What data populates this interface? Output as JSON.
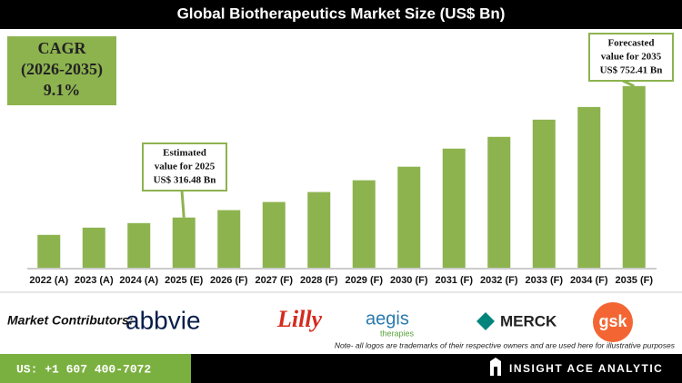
{
  "chart_data": {
    "type": "bar",
    "title": "Global Biotherapeutics Market Size (US$ Bn)",
    "categories": [
      "2022 (A)",
      "2023 (A)",
      "2024 (A)",
      "2025 (E)",
      "2026 (F)",
      "2027 (F)",
      "2028 (F)",
      "2029 (F)",
      "2030 (F)",
      "2031 (F)",
      "2032 (F)",
      "2033 (F)",
      "2034 (F)",
      "2035 (F)"
    ],
    "values": [
      259,
      283,
      298,
      316.48,
      341,
      368,
      401,
      440,
      485,
      545,
      584,
      641,
      683,
      752.41
    ],
    "color": "#8db34f",
    "ylim": [
      150,
      800
    ],
    "cagr": [
      "CAGR",
      "(2026-2035)",
      "9.1%"
    ],
    "annotations": [
      {
        "lines": [
          "Estimated",
          "value for 2025",
          "US$ 316.48 Bn"
        ]
      },
      {
        "lines": [
          "Forecasted",
          "value for 2035",
          "US$ 752.41 Bn"
        ]
      }
    ]
  },
  "contributors": {
    "label": "Market Contributors:",
    "logos": [
      "abbvie",
      "Lilly",
      "aegis",
      "therapies",
      "MERCK",
      "gsk"
    ]
  },
  "note": "Note- all logos are trademarks of their respective owners and are used here for illustrative purposes",
  "footer": {
    "phone": "US: +1 607 400-7072",
    "brand": "INSIGHT ACE ANALYTIC"
  }
}
